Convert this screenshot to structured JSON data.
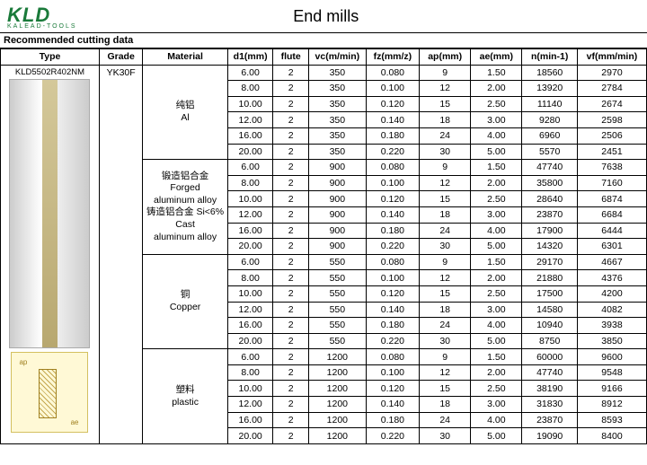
{
  "logo_text": "KLD",
  "logo_sub": "KALEAD-TOOLS",
  "title": "End mills",
  "subtitle": "Recommended cutting data",
  "type_val": "KLD5502R402NM",
  "grade_val": "YK30F",
  "headers": {
    "type": "Type",
    "grade": "Grade",
    "material": "Material",
    "d1": "d1(mm)",
    "flute": "flute",
    "vc": "vc(m/min)",
    "fz": "fz(mm/z)",
    "ap": "ap(mm)",
    "ae": "ae(mm)",
    "n": "n(min-1)",
    "vf": "vf(mm/min)"
  },
  "diagram": {
    "ap": "ap",
    "ae": "ae"
  },
  "materials": [
    {
      "label_cn": "纯铝",
      "label_en": "Al",
      "rows": [
        {
          "d1": "6.00",
          "flute": "2",
          "vc": "350",
          "fz": "0.080",
          "ap": "9",
          "ae": "1.50",
          "n": "18560",
          "vf": "2970"
        },
        {
          "d1": "8.00",
          "flute": "2",
          "vc": "350",
          "fz": "0.100",
          "ap": "12",
          "ae": "2.00",
          "n": "13920",
          "vf": "2784"
        },
        {
          "d1": "10.00",
          "flute": "2",
          "vc": "350",
          "fz": "0.120",
          "ap": "15",
          "ae": "2.50",
          "n": "11140",
          "vf": "2674"
        },
        {
          "d1": "12.00",
          "flute": "2",
          "vc": "350",
          "fz": "0.140",
          "ap": "18",
          "ae": "3.00",
          "n": "9280",
          "vf": "2598"
        },
        {
          "d1": "16.00",
          "flute": "2",
          "vc": "350",
          "fz": "0.180",
          "ap": "24",
          "ae": "4.00",
          "n": "6960",
          "vf": "2506"
        },
        {
          "d1": "20.00",
          "flute": "2",
          "vc": "350",
          "fz": "0.220",
          "ap": "30",
          "ae": "5.00",
          "n": "5570",
          "vf": "2451"
        }
      ]
    },
    {
      "label_multi": [
        "锻造铝合金",
        "Forged",
        "aluminum alloy",
        "铸造铝合金 Si<6%",
        "Cast",
        "aluminum alloy"
      ],
      "rows": [
        {
          "d1": "6.00",
          "flute": "2",
          "vc": "900",
          "fz": "0.080",
          "ap": "9",
          "ae": "1.50",
          "n": "47740",
          "vf": "7638"
        },
        {
          "d1": "8.00",
          "flute": "2",
          "vc": "900",
          "fz": "0.100",
          "ap": "12",
          "ae": "2.00",
          "n": "35800",
          "vf": "7160"
        },
        {
          "d1": "10.00",
          "flute": "2",
          "vc": "900",
          "fz": "0.120",
          "ap": "15",
          "ae": "2.50",
          "n": "28640",
          "vf": "6874"
        },
        {
          "d1": "12.00",
          "flute": "2",
          "vc": "900",
          "fz": "0.140",
          "ap": "18",
          "ae": "3.00",
          "n": "23870",
          "vf": "6684"
        },
        {
          "d1": "16.00",
          "flute": "2",
          "vc": "900",
          "fz": "0.180",
          "ap": "24",
          "ae": "4.00",
          "n": "17900",
          "vf": "6444"
        },
        {
          "d1": "20.00",
          "flute": "2",
          "vc": "900",
          "fz": "0.220",
          "ap": "30",
          "ae": "5.00",
          "n": "14320",
          "vf": "6301"
        }
      ]
    },
    {
      "label_cn": "铜",
      "label_en": "Copper",
      "rows": [
        {
          "d1": "6.00",
          "flute": "2",
          "vc": "550",
          "fz": "0.080",
          "ap": "9",
          "ae": "1.50",
          "n": "29170",
          "vf": "4667"
        },
        {
          "d1": "8.00",
          "flute": "2",
          "vc": "550",
          "fz": "0.100",
          "ap": "12",
          "ae": "2.00",
          "n": "21880",
          "vf": "4376"
        },
        {
          "d1": "10.00",
          "flute": "2",
          "vc": "550",
          "fz": "0.120",
          "ap": "15",
          "ae": "2.50",
          "n": "17500",
          "vf": "4200"
        },
        {
          "d1": "12.00",
          "flute": "2",
          "vc": "550",
          "fz": "0.140",
          "ap": "18",
          "ae": "3.00",
          "n": "14580",
          "vf": "4082"
        },
        {
          "d1": "16.00",
          "flute": "2",
          "vc": "550",
          "fz": "0.180",
          "ap": "24",
          "ae": "4.00",
          "n": "10940",
          "vf": "3938"
        },
        {
          "d1": "20.00",
          "flute": "2",
          "vc": "550",
          "fz": "0.220",
          "ap": "30",
          "ae": "5.00",
          "n": "8750",
          "vf": "3850"
        }
      ]
    },
    {
      "label_cn": "塑料",
      "label_en": "plastic",
      "rows": [
        {
          "d1": "6.00",
          "flute": "2",
          "vc": "1200",
          "fz": "0.080",
          "ap": "9",
          "ae": "1.50",
          "n": "60000",
          "vf": "9600"
        },
        {
          "d1": "8.00",
          "flute": "2",
          "vc": "1200",
          "fz": "0.100",
          "ap": "12",
          "ae": "2.00",
          "n": "47740",
          "vf": "9548"
        },
        {
          "d1": "10.00",
          "flute": "2",
          "vc": "1200",
          "fz": "0.120",
          "ap": "15",
          "ae": "2.50",
          "n": "38190",
          "vf": "9166"
        },
        {
          "d1": "12.00",
          "flute": "2",
          "vc": "1200",
          "fz": "0.140",
          "ap": "18",
          "ae": "3.00",
          "n": "31830",
          "vf": "8912"
        },
        {
          "d1": "16.00",
          "flute": "2",
          "vc": "1200",
          "fz": "0.180",
          "ap": "24",
          "ae": "4.00",
          "n": "23870",
          "vf": "8593"
        },
        {
          "d1": "20.00",
          "flute": "2",
          "vc": "1200",
          "fz": "0.220",
          "ap": "30",
          "ae": "5.00",
          "n": "19090",
          "vf": "8400"
        }
      ]
    }
  ]
}
